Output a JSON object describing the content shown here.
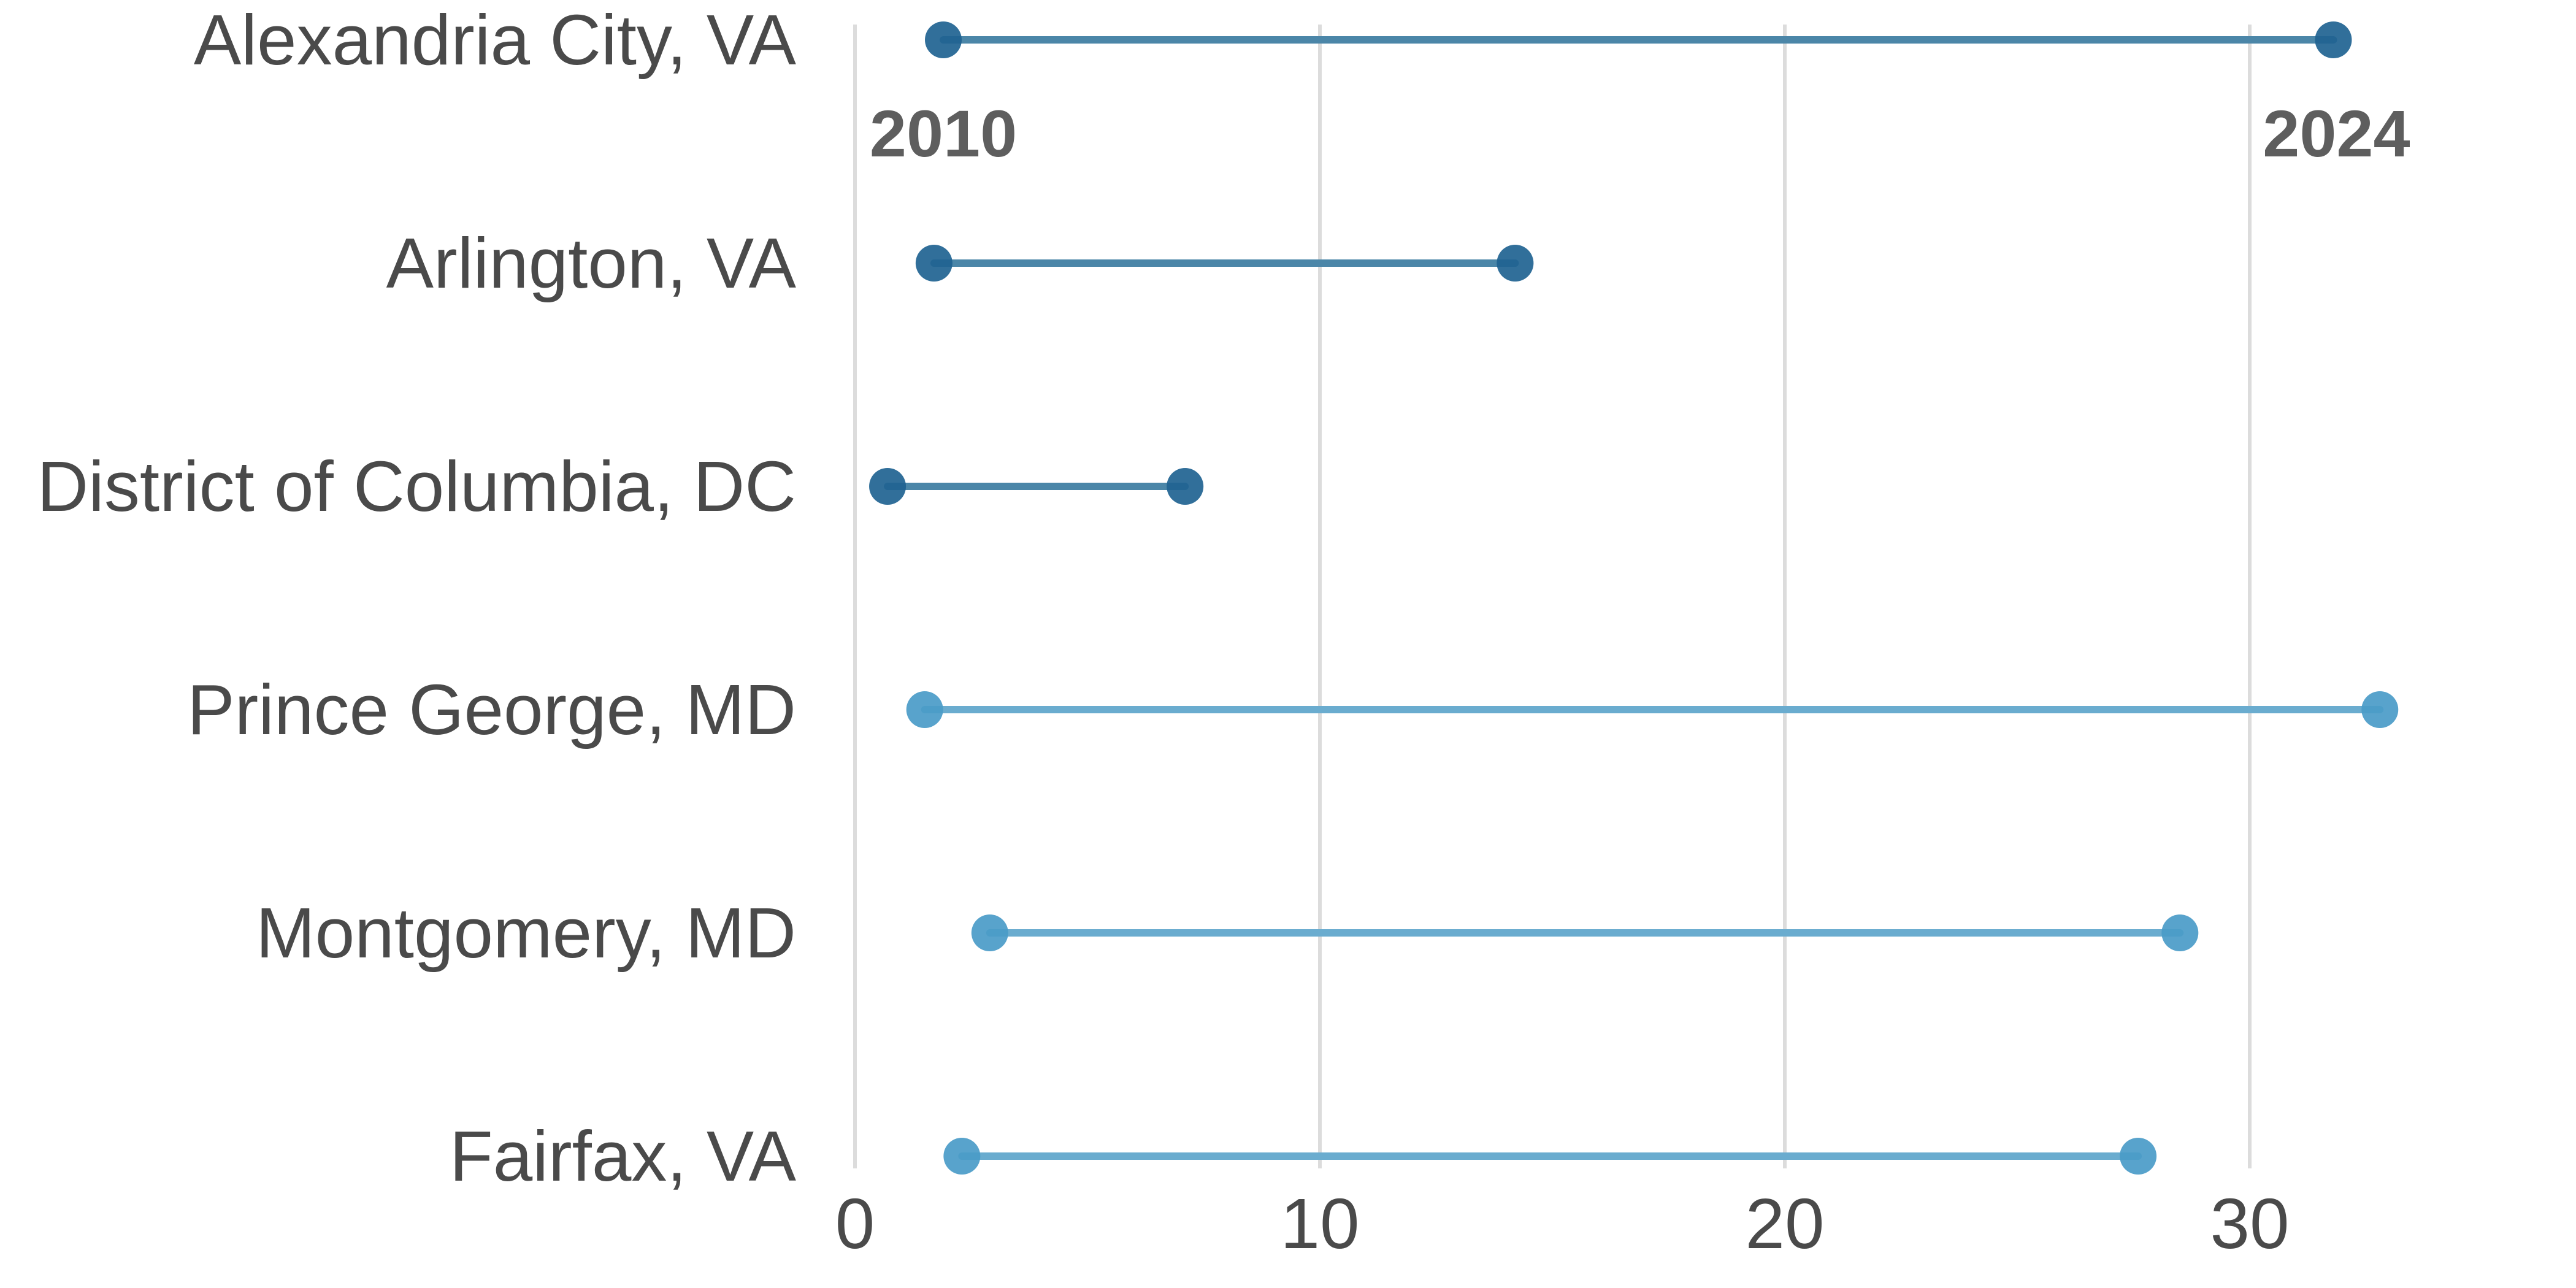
{
  "chart_data": {
    "type": "dumbbell",
    "xlim": [
      0,
      36
    ],
    "xticks": [
      0,
      10,
      20,
      30
    ],
    "grid": true,
    "annotations": {
      "start": "2010",
      "end": "2024"
    },
    "rows": [
      {
        "label": "Alexandria City, VA",
        "start": 1.9,
        "end": 31.8,
        "color": "#1f6391",
        "line_color": "#4b86a8"
      },
      {
        "label": "Arlington, VA",
        "start": 1.7,
        "end": 14.2,
        "color": "#1f6391",
        "line_color": "#4b86a8"
      },
      {
        "label": "District of Columbia, DC",
        "start": 0.7,
        "end": 7.1,
        "color": "#1f6391",
        "line_color": "#4b86a8"
      },
      {
        "label": "Prince George, MD",
        "start": 1.5,
        "end": 32.8,
        "color": "#4a9bc8",
        "line_color": "#6aaccf"
      },
      {
        "label": "Montgomery, MD",
        "start": 2.9,
        "end": 28.5,
        "color": "#4a9bc8",
        "line_color": "#6aaccf"
      },
      {
        "label": "Fairfax, VA",
        "start": 2.3,
        "end": 27.6,
        "color": "#4a9bc8",
        "line_color": "#6aaccf"
      }
    ]
  }
}
